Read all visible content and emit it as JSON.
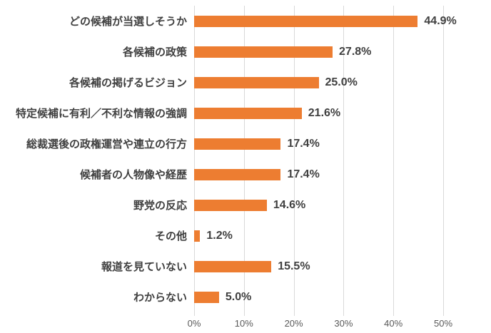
{
  "chart_data": {
    "type": "bar",
    "orientation": "horizontal",
    "title": "",
    "xlabel": "",
    "ylabel": "",
    "categories": [
      "どの候補が当選しそうか",
      "各候補の政策",
      "各候補の掲げるビジョン",
      "特定候補に有利／不利な情報の強調",
      "総裁選後の政権運営や連立の行方",
      "候補者の人物像や経歴",
      "野党の反応",
      "その他",
      "報道を見ていない",
      "わからない"
    ],
    "values": [
      44.9,
      27.8,
      25.0,
      21.6,
      17.4,
      17.4,
      14.6,
      1.2,
      15.5,
      5.0
    ],
    "value_labels": [
      "44.9%",
      "27.8%",
      "25.0%",
      "21.6%",
      "17.4%",
      "17.4%",
      "14.6%",
      "1.2%",
      "15.5%",
      "5.0%"
    ],
    "xlim": [
      0,
      50
    ],
    "x_tick_values": [
      0,
      10,
      20,
      30,
      40,
      50
    ],
    "x_tick_labels": [
      "0%",
      "10%",
      "20%",
      "30%",
      "40%",
      "50%"
    ],
    "grid": true,
    "legend": "none",
    "colors": {
      "bar": "#ed7d31",
      "category_label": "#404040",
      "value_label": "#404040",
      "axis_label": "#595959",
      "gridline": "#d9d9d9",
      "background": "#ffffff"
    }
  }
}
